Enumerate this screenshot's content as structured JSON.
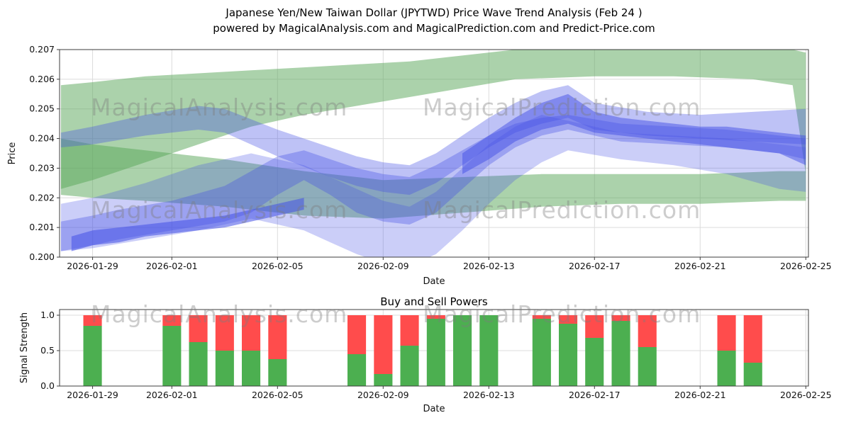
{
  "title": {
    "line1": "Japanese Yen/New Taiwan Dollar (JPYTWD) Price Wave Trend Analysis (Feb 24 )",
    "line2": "powered by MagicalAnalysis.com and MagicalPrediction.com and Predict-Price.com"
  },
  "watermark": {
    "analysis": "MagicalAnalysis.com",
    "prediction": "MagicalPrediction.com"
  },
  "chart_data": [
    {
      "type": "area",
      "title": "",
      "xlabel": "Date",
      "ylabel": "Price",
      "ylim": [
        0.2,
        0.207
      ],
      "yticks": [
        0.2,
        0.201,
        0.202,
        0.203,
        0.204,
        0.205,
        0.206,
        0.207
      ],
      "ytick_labels": [
        "0.200",
        "0.201",
        "0.202",
        "0.203",
        "0.204",
        "0.205",
        "0.206",
        "0.207"
      ],
      "day0_date": "2026-01-29",
      "xlim_days": [
        -1.25,
        27.1
      ],
      "xticks_days": [
        0,
        3,
        7,
        11,
        15,
        19,
        23,
        27
      ],
      "xtick_labels": [
        "2026-01-29",
        "2026-02-01",
        "2026-02-05",
        "2026-02-09",
        "2026-02-13",
        "2026-02-17",
        "2026-02-21",
        "2026-02-25"
      ],
      "grid": true,
      "bands": [
        {
          "name": "green-upper-trend",
          "color": "#57a657",
          "alpha": 0.5,
          "x": [
            -1.2,
            0,
            2,
            4,
            6,
            8,
            10,
            12,
            14,
            16,
            19,
            22,
            25,
            26.5,
            27
          ],
          "top": [
            0.2058,
            0.2059,
            0.2061,
            0.2062,
            0.2063,
            0.2064,
            0.2065,
            0.2066,
            0.2068,
            0.207,
            0.207,
            0.207,
            0.207,
            0.207,
            0.2069
          ],
          "bottom": [
            0.2023,
            0.2026,
            0.2032,
            0.2038,
            0.2044,
            0.2048,
            0.2051,
            0.2054,
            0.2057,
            0.206,
            0.2061,
            0.2061,
            0.206,
            0.2058,
            0.2028
          ]
        },
        {
          "name": "green-lower-trend",
          "color": "#57a657",
          "alpha": 0.5,
          "x": [
            -1.2,
            0,
            2,
            5,
            8,
            11,
            14,
            17,
            20,
            23,
            26,
            27
          ],
          "top": [
            0.204,
            0.2038,
            0.2036,
            0.2033,
            0.2029,
            0.2026,
            0.2027,
            0.2028,
            0.2028,
            0.2028,
            0.2029,
            0.2029
          ],
          "bottom": [
            0.2021,
            0.202,
            0.2019,
            0.2017,
            0.2014,
            0.2013,
            0.2015,
            0.2017,
            0.2018,
            0.2018,
            0.2019,
            0.2019
          ]
        },
        {
          "name": "blue-light-fan",
          "color": "#4450e6",
          "alpha": 0.28,
          "x": [
            -1.2,
            0,
            2,
            4,
            6,
            8,
            9,
            10,
            11,
            12,
            13,
            14,
            15,
            16,
            17,
            18,
            20,
            22,
            24,
            26,
            27
          ],
          "top": [
            0.2018,
            0.202,
            0.2025,
            0.2031,
            0.2035,
            0.2031,
            0.2027,
            0.2023,
            0.2019,
            0.2017,
            0.2022,
            0.203,
            0.2038,
            0.2044,
            0.2048,
            0.2046,
            0.2042,
            0.2041,
            0.204,
            0.2038,
            0.2037
          ],
          "bottom": [
            0.2002,
            0.2003,
            0.2006,
            0.2009,
            0.2013,
            0.2009,
            0.2005,
            0.2001,
            0.1998,
            0.1997,
            0.2001,
            0.2009,
            0.2018,
            0.2026,
            0.2032,
            0.2036,
            0.2033,
            0.2031,
            0.2028,
            0.2023,
            0.2022
          ]
        },
        {
          "name": "blue-rising-wave",
          "color": "#4450e6",
          "alpha": 0.35,
          "x": [
            -1.2,
            0,
            1,
            3,
            5,
            6,
            7,
            8,
            9,
            10,
            11,
            12,
            13,
            14,
            15,
            16,
            17,
            18,
            20,
            22,
            24,
            26,
            27
          ],
          "top": [
            0.2012,
            0.2014,
            0.2016,
            0.2019,
            0.2024,
            0.2029,
            0.2034,
            0.2036,
            0.2033,
            0.203,
            0.2028,
            0.2027,
            0.2031,
            0.2036,
            0.2041,
            0.2045,
            0.2047,
            0.2048,
            0.2045,
            0.2044,
            0.2043,
            0.2041,
            0.204
          ],
          "bottom": [
            0.2002,
            0.2004,
            0.2006,
            0.2009,
            0.2012,
            0.2015,
            0.2021,
            0.2026,
            0.2021,
            0.2015,
            0.2012,
            0.2011,
            0.2015,
            0.2023,
            0.2031,
            0.2037,
            0.2041,
            0.2043,
            0.2039,
            0.2038,
            0.2037,
            0.2035,
            0.2033
          ]
        },
        {
          "name": "blue-upper-wave",
          "color": "#4450e6",
          "alpha": 0.35,
          "x": [
            -1.2,
            0,
            2,
            4,
            5,
            7,
            9,
            10,
            11,
            12,
            13,
            14,
            15,
            16,
            17,
            18,
            19,
            21,
            23,
            25,
            27
          ],
          "top": [
            0.2042,
            0.2044,
            0.2048,
            0.2051,
            0.205,
            0.2043,
            0.2037,
            0.2034,
            0.2032,
            0.2031,
            0.2035,
            0.2041,
            0.2047,
            0.2052,
            0.2056,
            0.2058,
            0.2052,
            0.2049,
            0.2048,
            0.2049,
            0.205
          ],
          "bottom": [
            0.2037,
            0.2038,
            0.2041,
            0.2043,
            0.2042,
            0.2034,
            0.2027,
            0.2024,
            0.2022,
            0.2021,
            0.2025,
            0.2031,
            0.2037,
            0.2042,
            0.2045,
            0.2047,
            0.2043,
            0.2041,
            0.204,
            0.2039,
            0.2038
          ]
        },
        {
          "name": "blue-dark-core-left",
          "color": "#4450e6",
          "alpha": 0.55,
          "x": [
            -0.8,
            0,
            1,
            2,
            3,
            4,
            5,
            6,
            7,
            8
          ],
          "top": [
            0.2007,
            0.2009,
            0.201,
            0.2011,
            0.2012,
            0.2013,
            0.2014,
            0.2016,
            0.2018,
            0.202
          ],
          "bottom": [
            0.2002,
            0.2004,
            0.2005,
            0.2007,
            0.2008,
            0.2009,
            0.201,
            0.2012,
            0.2014,
            0.2016
          ]
        },
        {
          "name": "blue-dark-core-right",
          "color": "#4450e6",
          "alpha": 0.5,
          "x": [
            14,
            15,
            16,
            17,
            18,
            19,
            20,
            21,
            22,
            23,
            24,
            25,
            26,
            27
          ],
          "top": [
            0.2035,
            0.2041,
            0.2047,
            0.2052,
            0.2055,
            0.2049,
            0.2047,
            0.2046,
            0.2045,
            0.2044,
            0.2044,
            0.2043,
            0.2042,
            0.2041
          ],
          "bottom": [
            0.2028,
            0.2033,
            0.2039,
            0.2043,
            0.2045,
            0.2042,
            0.2041,
            0.204,
            0.2039,
            0.2038,
            0.2037,
            0.2036,
            0.2035,
            0.2031
          ]
        }
      ]
    },
    {
      "type": "bar",
      "title": "Buy and Sell Powers",
      "xlabel": "Date",
      "ylabel": "Signal Strength",
      "ylim": [
        0,
        1.08
      ],
      "yticks": [
        0,
        0.5,
        1
      ],
      "ytick_labels": [
        "0.0",
        "0.5",
        "1.0"
      ],
      "day0_date": "2026-01-29",
      "xlim_days": [
        -1.25,
        27.1
      ],
      "xticks_days": [
        0,
        3,
        7,
        11,
        15,
        19,
        23,
        27
      ],
      "xtick_labels": [
        "2026-01-29",
        "2026-02-01",
        "2026-02-05",
        "2026-02-09",
        "2026-02-13",
        "2026-02-17",
        "2026-02-21",
        "2026-02-25"
      ],
      "grid": true,
      "bars": {
        "days": [
          0,
          3,
          4,
          5,
          6,
          7,
          10,
          11,
          12,
          13,
          14,
          15,
          17,
          18,
          19,
          20,
          21,
          24,
          25
        ],
        "buy": [
          0.85,
          0.85,
          0.62,
          0.5,
          0.5,
          0.38,
          0.45,
          0.17,
          0.57,
          0.95,
          1.0,
          1.0,
          0.95,
          0.88,
          0.68,
          0.92,
          0.55,
          0.5,
          0.33
        ],
        "sell": [
          0.15,
          0.15,
          0.38,
          0.5,
          0.5,
          0.62,
          0.55,
          0.83,
          0.43,
          0.05,
          0.0,
          0.0,
          0.05,
          0.12,
          0.32,
          0.08,
          0.45,
          0.5,
          0.67
        ],
        "buy_color": "#4caf50",
        "sell_color": "#ff4c4c",
        "bar_width_days": 0.7
      }
    }
  ]
}
